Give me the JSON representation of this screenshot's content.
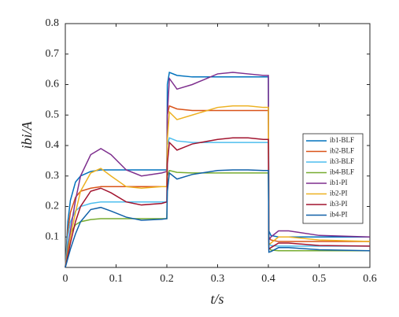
{
  "chart_data": {
    "type": "line",
    "x_label": "t/s",
    "y_label": "ibi/A",
    "x": [
      0,
      0.005,
      0.01,
      0.02,
      0.03,
      0.05,
      0.07,
      0.09,
      0.12,
      0.15,
      0.19,
      0.2,
      0.201,
      0.205,
      0.22,
      0.25,
      0.3,
      0.33,
      0.36,
      0.39,
      0.4,
      0.401,
      0.405,
      0.42,
      0.44,
      0.5,
      0.6
    ],
    "xlim": [
      0,
      0.6
    ],
    "xticks": [
      0,
      0.1,
      0.2,
      0.3,
      0.4,
      0.5,
      0.6
    ],
    "ylim": [
      0,
      0.8
    ],
    "yticks": [
      0.1,
      0.2,
      0.3,
      0.4,
      0.5,
      0.6,
      0.7,
      0.8
    ],
    "legend": "right",
    "series": [
      {
        "name": "ib1-BLF",
        "color": "#0072BD",
        "values": [
          0,
          0.15,
          0.22,
          0.28,
          0.3,
          0.315,
          0.32,
          0.32,
          0.32,
          0.32,
          0.32,
          0.32,
          0.6,
          0.64,
          0.63,
          0.625,
          0.625,
          0.625,
          0.625,
          0.625,
          0.625,
          0.12,
          0.105,
          0.1,
          0.1,
          0.1,
          0.1
        ]
      },
      {
        "name": "ib2-BLF",
        "color": "#D95319",
        "values": [
          0,
          0.12,
          0.18,
          0.23,
          0.25,
          0.26,
          0.265,
          0.265,
          0.265,
          0.265,
          0.265,
          0.265,
          0.5,
          0.53,
          0.52,
          0.515,
          0.515,
          0.515,
          0.515,
          0.515,
          0.515,
          0.1,
          0.09,
          0.085,
          0.085,
          0.085,
          0.085
        ]
      },
      {
        "name": "ib3-BLF",
        "color": "#4DBEEE",
        "values": [
          0,
          0.1,
          0.15,
          0.185,
          0.2,
          0.21,
          0.215,
          0.215,
          0.215,
          0.215,
          0.215,
          0.215,
          0.4,
          0.425,
          0.415,
          0.41,
          0.41,
          0.41,
          0.41,
          0.41,
          0.41,
          0.08,
          0.072,
          0.07,
          0.07,
          0.07,
          0.07
        ]
      },
      {
        "name": "ib4-BLF",
        "color": "#77AC30",
        "values": [
          0,
          0.07,
          0.11,
          0.14,
          0.15,
          0.157,
          0.16,
          0.16,
          0.16,
          0.16,
          0.16,
          0.16,
          0.3,
          0.318,
          0.312,
          0.31,
          0.31,
          0.31,
          0.31,
          0.31,
          0.31,
          0.065,
          0.057,
          0.055,
          0.055,
          0.055,
          0.055
        ]
      },
      {
        "name": "ib1-PI",
        "color": "#7E2F8E",
        "values": [
          0,
          0.06,
          0.12,
          0.22,
          0.3,
          0.37,
          0.39,
          0.37,
          0.32,
          0.3,
          0.31,
          0.315,
          0.5,
          0.62,
          0.585,
          0.6,
          0.635,
          0.64,
          0.635,
          0.63,
          0.63,
          0.09,
          0.1,
          0.12,
          0.12,
          0.105,
          0.1
        ]
      },
      {
        "name": "ib2-PI",
        "color": "#EDB120",
        "values": [
          0,
          0.05,
          0.1,
          0.18,
          0.25,
          0.31,
          0.325,
          0.3,
          0.265,
          0.26,
          0.265,
          0.265,
          0.42,
          0.51,
          0.485,
          0.5,
          0.525,
          0.53,
          0.53,
          0.525,
          0.525,
          0.075,
          0.08,
          0.1,
          0.1,
          0.09,
          0.085
        ]
      },
      {
        "name": "ib3-PI",
        "color": "#A2142F",
        "values": [
          0,
          0.04,
          0.08,
          0.15,
          0.2,
          0.25,
          0.26,
          0.245,
          0.215,
          0.205,
          0.21,
          0.215,
          0.34,
          0.41,
          0.385,
          0.405,
          0.42,
          0.425,
          0.425,
          0.42,
          0.42,
          0.06,
          0.065,
          0.08,
          0.08,
          0.072,
          0.07
        ]
      },
      {
        "name": "ib4-PI",
        "color": "#1060A8",
        "values": [
          0,
          0.03,
          0.06,
          0.11,
          0.15,
          0.19,
          0.197,
          0.185,
          0.165,
          0.155,
          0.158,
          0.16,
          0.25,
          0.31,
          0.29,
          0.305,
          0.318,
          0.32,
          0.32,
          0.318,
          0.318,
          0.05,
          0.052,
          0.065,
          0.065,
          0.058,
          0.055
        ]
      }
    ]
  }
}
